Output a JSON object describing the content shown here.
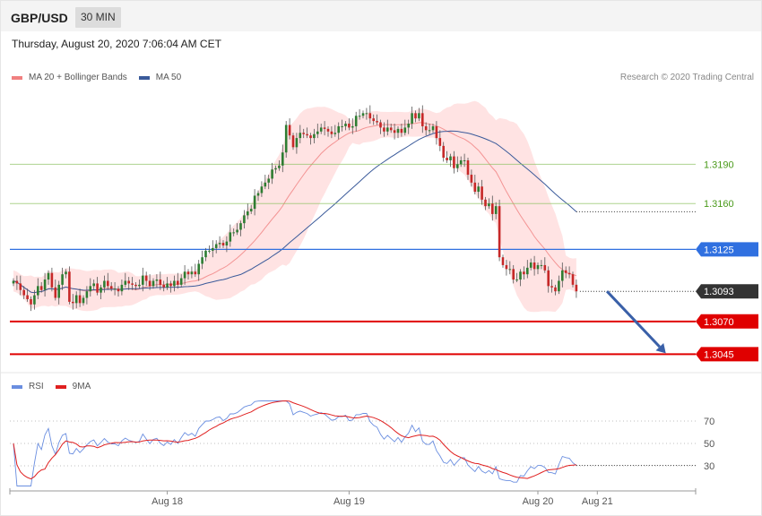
{
  "header": {
    "symbol": "GBP/USD",
    "timeframe": "30 MIN",
    "timestamp": "Thursday, August 20, 2020 7:06:04 AM CET"
  },
  "credit": "Research © 2020 Trading Central",
  "colors": {
    "up": "#2e7d32",
    "down": "#c62828",
    "ma20": "#f08080",
    "band": "#ffdada",
    "ma50": "#3a5a9a",
    "rsi": "#6a8ee0",
    "rsi_ma": "#e02020",
    "support": "#e00000",
    "pivot": "#3070e0",
    "resistance": "#8cc060",
    "current": "#333333",
    "arrow": "#3a60a8"
  },
  "chart_data": [
    {
      "type": "candlestick",
      "legend": [
        {
          "name": "MA 20 + Bollinger Bands",
          "color": "#f08080"
        },
        {
          "name": "MA 50",
          "color": "#3a5a9a"
        }
      ],
      "ylim": [
        1.3035,
        1.3247
      ],
      "x_ticks": [
        {
          "label": "Aug 18",
          "index": 44
        },
        {
          "label": "Aug 19",
          "index": 96
        },
        {
          "label": "Aug 20",
          "index": 150
        },
        {
          "label": "Aug 21",
          "index": 167
        }
      ],
      "closes": [
        1.3101,
        1.3099,
        1.3094,
        1.309,
        1.3087,
        1.3083,
        1.309,
        1.3097,
        1.3094,
        1.3102,
        1.3107,
        1.3096,
        1.3088,
        1.3098,
        1.3106,
        1.3108,
        1.3085,
        1.3084,
        1.309,
        1.3084,
        1.3088,
        1.3093,
        1.3097,
        1.3099,
        1.3092,
        1.3096,
        1.3101,
        1.3097,
        1.3095,
        1.3095,
        1.3093,
        1.3098,
        1.3101,
        1.3099,
        1.3098,
        1.3097,
        1.3098,
        1.3105,
        1.3101,
        1.3097,
        1.3101,
        1.3102,
        1.3098,
        1.3096,
        1.3099,
        1.3097,
        1.3101,
        1.3098,
        1.3103,
        1.3108,
        1.3106,
        1.3108,
        1.3106,
        1.3114,
        1.3119,
        1.3124,
        1.3124,
        1.3126,
        1.3129,
        1.313,
        1.3128,
        1.3131,
        1.3138,
        1.3138,
        1.314,
        1.3145,
        1.3151,
        1.3154,
        1.3156,
        1.3166,
        1.3168,
        1.3173,
        1.3176,
        1.3179,
        1.3186,
        1.3187,
        1.3189,
        1.3199,
        1.322,
        1.3212,
        1.3203,
        1.321,
        1.3214,
        1.3213,
        1.3212,
        1.321,
        1.3213,
        1.3215,
        1.3218,
        1.3217,
        1.3215,
        1.3213,
        1.3214,
        1.3219,
        1.3219,
        1.3221,
        1.3218,
        1.3219,
        1.3227,
        1.3227,
        1.3229,
        1.3229,
        1.3225,
        1.3223,
        1.3222,
        1.3218,
        1.3215,
        1.3218,
        1.3216,
        1.3214,
        1.3217,
        1.3214,
        1.3218,
        1.3221,
        1.3229,
        1.3225,
        1.3229,
        1.3219,
        1.3216,
        1.3216,
        1.3219,
        1.321,
        1.3204,
        1.3195,
        1.3193,
        1.3196,
        1.3187,
        1.319,
        1.3193,
        1.3193,
        1.3182,
        1.3176,
        1.3169,
        1.3173,
        1.3163,
        1.3158,
        1.316,
        1.3152,
        1.3158,
        1.3119,
        1.3113,
        1.311,
        1.311,
        1.3102,
        1.3102,
        1.3108,
        1.3106,
        1.3111,
        1.3115,
        1.311,
        1.3113,
        1.3113,
        1.3109,
        1.3097,
        1.3096,
        1.3093,
        1.3101,
        1.3109,
        1.3107,
        1.3106,
        1.3098,
        1.3093
      ],
      "lines": [
        {
          "label": "1.3190",
          "value": 1.319,
          "kind": "resistance"
        },
        {
          "label": "1.3160",
          "value": 1.316,
          "kind": "resistance"
        },
        {
          "label": "1.3125",
          "value": 1.3125,
          "kind": "pivot"
        },
        {
          "label": "1.3093",
          "value": 1.3093,
          "kind": "current"
        },
        {
          "label": "1.3070",
          "value": 1.307,
          "kind": "support"
        },
        {
          "label": "1.3045",
          "value": 1.3045,
          "kind": "support"
        }
      ],
      "arrow": {
        "from_index": 169,
        "from_value": 1.3093,
        "to_index": 183,
        "to_value": 1.3045
      }
    },
    {
      "type": "line",
      "legend": [
        {
          "name": "RSI",
          "color": "#6a8ee0"
        },
        {
          "name": "9MA",
          "color": "#e02020"
        }
      ],
      "ylim": [
        10,
        90
      ],
      "y_ticks": [
        70,
        50,
        30
      ]
    }
  ]
}
